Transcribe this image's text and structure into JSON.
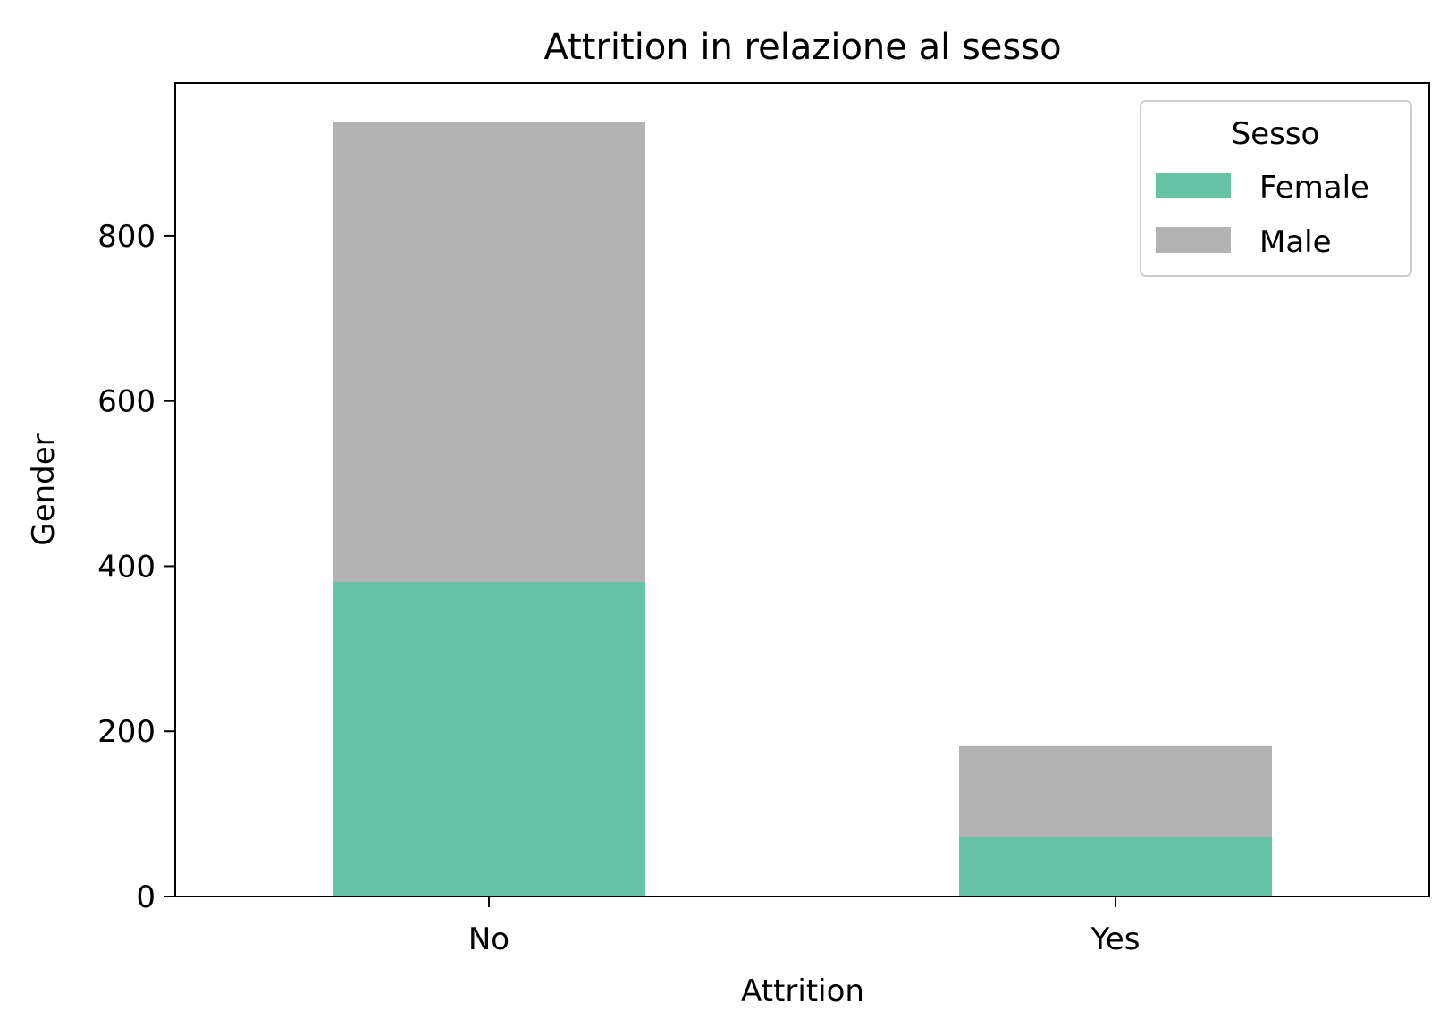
{
  "chart_data": {
    "type": "bar",
    "stacked": true,
    "title": "Attrition in relazione al sesso",
    "xlabel": "Attrition",
    "ylabel": "Gender",
    "categories": [
      "No",
      "Yes"
    ],
    "series": [
      {
        "name": "Female",
        "values": [
          381,
          72
        ],
        "color": "#66c2a5"
      },
      {
        "name": "Male",
        "values": [
          557,
          110
        ],
        "color": "#b3b3b3"
      }
    ],
    "ylim": [
      0,
      985
    ],
    "yticks": [
      0,
      200,
      400,
      600,
      800
    ],
    "grid": false,
    "legend": {
      "title": "Sesso",
      "position": "top-right"
    }
  }
}
